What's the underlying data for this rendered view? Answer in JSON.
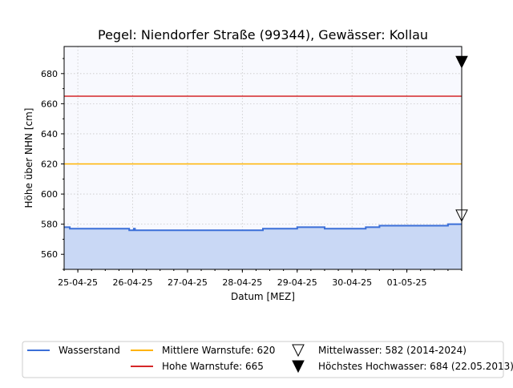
{
  "chart_data": {
    "type": "area",
    "title": "Pegel:  Niendorfer Straße (99344), Gewässer:  Kollau",
    "xlabel": "Datum [MEZ]",
    "ylabel": "Höhe über NHN [cm]",
    "xlim": [
      "2025-04-24T18:00",
      "2025-05-02T00:00"
    ],
    "ylim": [
      550,
      698
    ],
    "x_ticks": [
      "25-04-25",
      "26-04-25",
      "27-04-25",
      "28-04-25",
      "29-04-25",
      "30-04-25",
      "01-05-25"
    ],
    "y_ticks": [
      560,
      580,
      600,
      620,
      640,
      660,
      680
    ],
    "grid": true,
    "legend_position": "bottom-outside",
    "series": [
      {
        "name": "Wasserstand",
        "color": "#3b6fd8",
        "fill_color": "#c9d8f5",
        "x": [
          "2025-04-24T18:00",
          "2025-04-24T20:00",
          "2025-04-24T20:30",
          "2025-04-25T12:00",
          "2025-04-25T22:00",
          "2025-04-25T22:30",
          "2025-04-26T00:00",
          "2025-04-26T00:30",
          "2025-04-26T01:00",
          "2025-04-26T18:00",
          "2025-04-27T18:00",
          "2025-04-28T09:00",
          "2025-04-28T18:00",
          "2025-04-28T22:00",
          "2025-04-29T00:00",
          "2025-04-29T12:00",
          "2025-04-29T18:00",
          "2025-04-30T00:00",
          "2025-04-30T06:00",
          "2025-04-30T12:00",
          "2025-05-01T00:00",
          "2025-05-01T12:00",
          "2025-05-01T18:00",
          "2025-05-02T00:00"
        ],
        "values": [
          578,
          578,
          577,
          577,
          577,
          576,
          576,
          577,
          576,
          576,
          576,
          577,
          577,
          577,
          578,
          577,
          577,
          577,
          578,
          579,
          579,
          579,
          580,
          580
        ]
      }
    ],
    "reference_lines": [
      {
        "name": "Mittlere Warnstufe: 620",
        "value": 620,
        "color": "#ffb300"
      },
      {
        "name": "Hohe Warnstufe: 665",
        "value": 665,
        "color": "#d62728"
      }
    ],
    "markers": [
      {
        "name": "Mittelwasser: 582 (2014-2024)",
        "value": 582,
        "style": "open-triangle-down"
      },
      {
        "name": "Höchstes Hochwasser: 684 (22.05.2013)",
        "value": 684,
        "style": "filled-triangle-down"
      }
    ],
    "plot_background": "#f8f9fe"
  }
}
